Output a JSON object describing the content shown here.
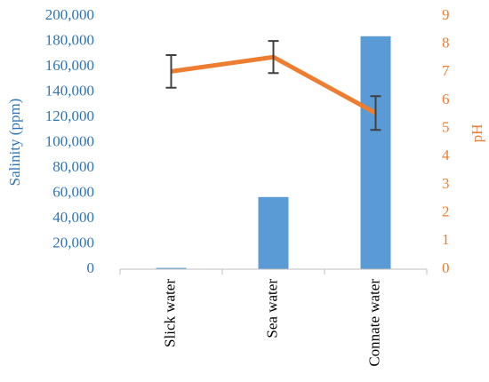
{
  "chart_data": {
    "type": "bar",
    "y_label": "Salinity (ppm)",
    "y2_label": "pH",
    "categories": [
      "Slick water",
      "Sea water",
      "Connate water"
    ],
    "series": [
      {
        "name": "Salinity",
        "type": "bar",
        "color": "#5b9bd5",
        "values": [
          1000,
          57000,
          184000
        ]
      },
      {
        "name": "pH",
        "type": "line",
        "axis": "y2",
        "color": "#ed7d31",
        "values": [
          7.03,
          7.54,
          5.55
        ],
        "errors": [
          0.58,
          0.57,
          0.6
        ],
        "error_color": "#404040"
      }
    ],
    "ylim": [
      0,
      200000
    ],
    "yticks": [
      {
        "value": 0,
        "label": "0"
      },
      {
        "value": 20000,
        "label": "20,000"
      },
      {
        "value": 40000,
        "label": "40,000"
      },
      {
        "value": 60000,
        "label": "60,000"
      },
      {
        "value": 80000,
        "label": "80,000"
      },
      {
        "value": 100000,
        "label": "100,000"
      },
      {
        "value": 120000,
        "label": "120,000"
      },
      {
        "value": 140000,
        "label": "140,000"
      },
      {
        "value": 160000,
        "label": "160,000"
      },
      {
        "value": 180000,
        "label": "180,000"
      },
      {
        "value": 200000,
        "label": "200,000"
      }
    ],
    "y2lim": [
      0,
      9
    ],
    "y2ticks": [
      0,
      1,
      2,
      3,
      4,
      5,
      6,
      7,
      8,
      9
    ],
    "y_color": "#2e75b6",
    "y2_color": "#ed7d31",
    "grid": false
  }
}
